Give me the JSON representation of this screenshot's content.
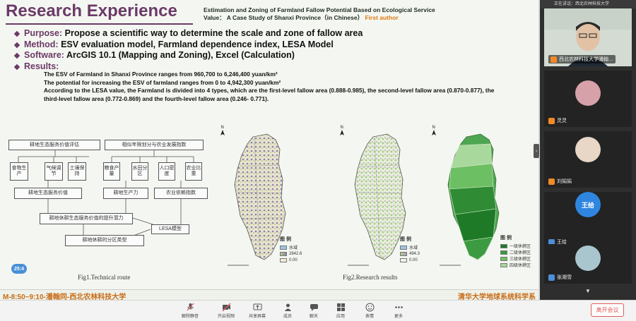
{
  "slide": {
    "title": "Research Experience",
    "paper_line1": "Estimation and Zoning of Farmland Fallow Potential Based on Ecological Service",
    "paper_line2": "Value： A Case Study of Shanxi Province（in Chinese）",
    "paper_author": "First author",
    "bullets": [
      {
        "key": "Purpose:",
        "text": " Propose a scientific way to determine the scale and zone of fallow area"
      },
      {
        "key": "Method:",
        "text": " ESV evaluation model, Farmland dependence index, LESA Model"
      },
      {
        "key": "Software:",
        "text": " ArcGIS 10.1 (Mapping and Zoning), Excel (Calculation)"
      },
      {
        "key": "Results:",
        "text": ""
      }
    ],
    "results": [
      "The ESV of Farmland in Shanxi Province ranges from 960,700 to 6,246,400 yuan/km²",
      "The potential for increasing the ESV of farmland ranges from 0 to 4,942,300 yuan/km²",
      "According to the LESA value, the Farmland is divided into 4 types, which are the first-level fallow area (0.888-0.985), the second-level fallow area (0.870-0.877), the third-level fallow area (0.772-0.869) and the fourth-level fallow area (0.246- 0.771)."
    ],
    "fig1_caption": "Fig1.Technical route",
    "fig2_caption": "Fig2.Research results",
    "flow": {
      "box_top_left": "耕地生态服务价值评估",
      "box_top_right": "相似年限划分与农业发展指数",
      "sub_left": [
        "食物生产",
        "气候调节",
        "土壤保持"
      ],
      "sub_right": [
        "粮食产量",
        "水田分区",
        "人口密度",
        "农业比重"
      ],
      "mid_left": "耕地生态服务价值",
      "mid_center": "耕地生产力",
      "mid_right": "农业依赖指数",
      "potential": "耕地休耕生态服务价值的提升潜力",
      "lesa": "LESA模型",
      "zoning": "耕地休耕的分区类型"
    },
    "legend_a": {
      "title": "图 例",
      "items": [
        "水域",
        "2842.6",
        "0.00"
      ]
    },
    "legend_b": {
      "title": "图 例",
      "items": [
        "水域",
        "494.3",
        "0.00"
      ]
    },
    "legend_c": {
      "title": "图 例",
      "items": [
        "一级休耕区",
        "二级休耕区",
        "三级休耕区",
        "四级休耕区"
      ]
    },
    "badge": "25:4"
  },
  "footer": {
    "left": "M-8:50~9:10-潘翰同-西北农林科技大学",
    "right": "清华大学地球系统科学系"
  },
  "participants": [
    {
      "name": "西北农林科技大学潘翰…"
    },
    {
      "name": "灵灵"
    },
    {
      "name": "刘娟娟"
    },
    {
      "name": "王给",
      "avatar_text": "王给"
    },
    {
      "name": "张湘雪"
    }
  ],
  "side_header": "正在讲话：西北农林科技大学",
  "toolbar": {
    "items": [
      {
        "label": "解除静音"
      },
      {
        "label": "开启视频"
      },
      {
        "label": "共享屏幕"
      },
      {
        "label": "成员"
      },
      {
        "label": "聊天"
      },
      {
        "label": "应用"
      },
      {
        "label": "表情"
      },
      {
        "label": "更多"
      }
    ],
    "leave": "离开会议"
  },
  "colors": {
    "title": "#6b3a68",
    "accent": "#e07a12",
    "footer": "#c86b16",
    "leave": "#e25a5a"
  }
}
